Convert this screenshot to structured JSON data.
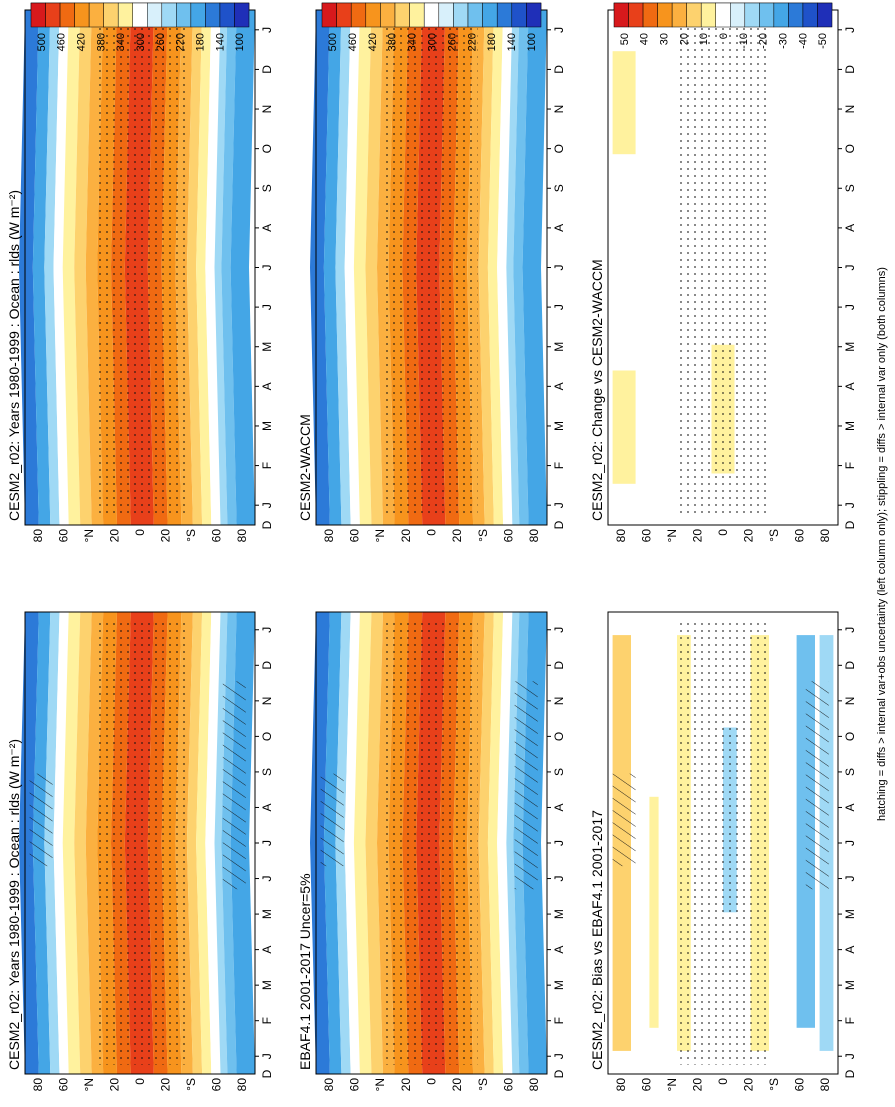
{
  "footer_note": "hatching = diffs > internal var+obs uncertainty (left column only); stippling = diffs > internal var only (both columns)",
  "months": [
    "J",
    "F",
    "M",
    "A",
    "M",
    "J",
    "J",
    "A",
    "S",
    "O",
    "N",
    "D",
    "J"
  ],
  "month_axis_end_label": "D",
  "lat_labels": [
    "80",
    "60",
    "°N",
    "20",
    "0",
    "20",
    "°S",
    "60",
    "80"
  ],
  "colorbars": {
    "absolute": [
      "500",
      "460",
      "420",
      "380",
      "340",
      "300",
      "260",
      "220",
      "180",
      "140",
      "100"
    ],
    "difference": [
      "50",
      "40",
      "30",
      "20",
      "10",
      "0",
      "-10",
      "-20",
      "-30",
      "-40",
      "-50"
    ],
    "colors": {
      "absolute": [
        "#d7191c",
        "#e8401a",
        "#f06a12",
        "#f7941d",
        "#fbb040",
        "#fdd26e",
        "#fff29e",
        "#ffffff",
        "#d8f0fb",
        "#9fd9f5",
        "#6fc0ee",
        "#44a6e6",
        "#2c7ad8",
        "#1f52c9",
        "#1f2fb8"
      ],
      "difference": [
        "#d7191c",
        "#e8401a",
        "#f06a12",
        "#f7941d",
        "#fbb040",
        "#fdd26e",
        "#fff29e",
        "#ffffff",
        "#d8f0fb",
        "#9fd9f5",
        "#6fc0ee",
        "#44a6e6",
        "#2c7ad8",
        "#1f52c9",
        "#1f2fb8"
      ]
    }
  },
  "panels": [
    {
      "title": "CESM2_r02: Years 1980-1999 : Ocean : rlds (W m⁻²)"
    },
    {
      "title": "EBAF4.1 2001-2017 Uncer=5%"
    },
    {
      "title": "CESM2_r02: Bias vs EBAF4.1 2001-2017"
    },
    {
      "title": "CESM2_r02: Years 1980-1999 : Ocean : rlds (W m⁻²)"
    },
    {
      "title": "CESM2-WACCM"
    },
    {
      "title": "CESM2_r02: Change vs CESM2-WACCM"
    }
  ],
  "chart_data": [
    {
      "type": "heatmap",
      "title": "CESM2_r02: Years 1980-1999 : Ocean : rlds (W m⁻²)",
      "x": "month (J–D)",
      "y": "latitude 90S–90N",
      "value_range": [
        100,
        500
      ]
    },
    {
      "type": "heatmap",
      "title": "EBAF4.1 2001-2017 Uncer=5%",
      "x": "month (J–D)",
      "y": "latitude 90S–90N",
      "value_range": [
        100,
        500
      ]
    },
    {
      "type": "heatmap",
      "title": "CESM2_r02: Bias vs EBAF4.1 2001-2017",
      "x": "month (J–D)",
      "y": "latitude 90S–90N",
      "value_range": [
        -50,
        50
      ]
    },
    {
      "type": "heatmap",
      "title": "CESM2_r02: Years 1980-1999 : Ocean : rlds (W m⁻²)",
      "x": "month (J–D)",
      "y": "latitude 90S–90N",
      "value_range": [
        100,
        500
      ]
    },
    {
      "type": "heatmap",
      "title": "CESM2-WACCM",
      "x": "month (J–D)",
      "y": "latitude 90S–90N",
      "value_range": [
        100,
        500
      ]
    },
    {
      "type": "heatmap",
      "title": "CESM2_r02: Change vs CESM2-WACCM",
      "x": "month (J–D)",
      "y": "latitude 90S–90N",
      "value_range": [
        -50,
        50
      ]
    }
  ]
}
